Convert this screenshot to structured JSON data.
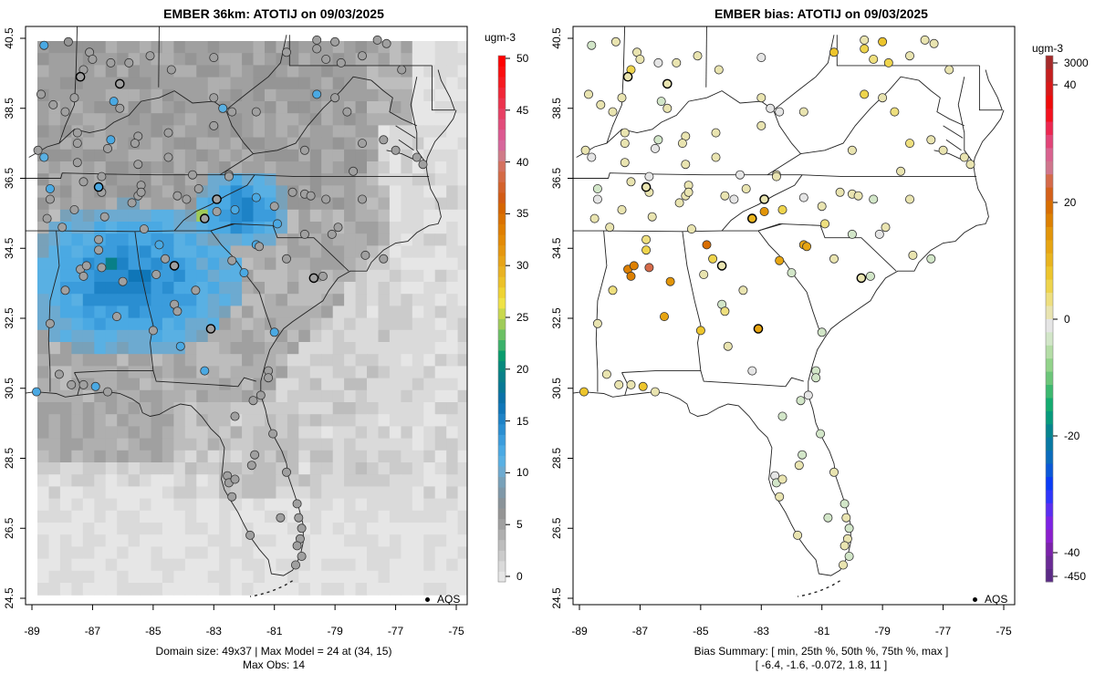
{
  "left_panel": {
    "title": "EMBER 36km: ATOTIJ on 09/03/2025",
    "colorbar": {
      "unit": "ugm-3",
      "ticks": [
        "0",
        "5",
        "10",
        "15",
        "20",
        "25",
        "30",
        "35",
        "40",
        "45",
        "50"
      ],
      "colors": [
        "#e6e6e6",
        "#dadada",
        "#cbcbcb",
        "#bdbdbd",
        "#afafaf",
        "#a0a0a0",
        "#959595",
        "#8a9399",
        "#7f98a8",
        "#78a1b9",
        "#6daad0",
        "#59b0e3",
        "#4aa9e3",
        "#3b9cdc",
        "#2a8ed1",
        "#1d82c6",
        "#0f76b8",
        "#0a71a8",
        "#077895",
        "#087f88",
        "#06897c",
        "#089b6c",
        "#3bb16a",
        "#6bc064",
        "#9fcb58",
        "#c9d84d",
        "#efe246",
        "#efd332",
        "#ecc128",
        "#e9b222",
        "#e7a417",
        "#e5960e",
        "#e38a05",
        "#df7e00",
        "#da7100",
        "#d56500",
        "#d25b14",
        "#d3622b",
        "#d46a45",
        "#d4715f",
        "#d07b88",
        "#d6669b",
        "#dc5890",
        "#e14c7a",
        "#e73f63",
        "#ec334d",
        "#f12637",
        "#f61a20",
        "#fb0d0e",
        "#ff0000"
      ]
    },
    "legend_label": "AQS",
    "footer_line1": "Domain size: 49x37 | Max Model = 24 at (34, 15)",
    "footer_line2": "Max Obs: 14"
  },
  "right_panel": {
    "title": "EMBER bias: ATOTIJ on 09/03/2025",
    "colorbar": {
      "unit": "ugm-3",
      "ticks": [
        "-450",
        "-40",
        "-20",
        "0",
        "20",
        "40",
        "3000"
      ],
      "colors": [
        "#5b2a86",
        "#6a2a95",
        "#7b22aa",
        "#8b1ecd",
        "#7d22e4",
        "#5a2ef0",
        "#2f36fb",
        "#0a3cf6",
        "#0a58d8",
        "#0a6cbc",
        "#0879a3",
        "#06848e",
        "#079a7c",
        "#14ab70",
        "#3cb86f",
        "#6cc679",
        "#92d38a",
        "#b4dda6",
        "#d2e6c8",
        "#e5e5e5",
        "#e9e4b0",
        "#eedf7e",
        "#eed44c",
        "#edc52c",
        "#e9b41e",
        "#e7a512",
        "#e29509",
        "#dd8002",
        "#d86e02",
        "#d4601a",
        "#d56a49",
        "#d0758c",
        "#d9628f",
        "#e24478",
        "#ec2650",
        "#f3111f",
        "#ee0b0b",
        "#d81818",
        "#c41f1f",
        "#a52a2a"
      ]
    },
    "legend_label": "AQS",
    "footer_line1": "Bias Summary: [ min, 25th %, 50th %, 75th %, max ]",
    "footer_line2": "[ -6.4,   -1.6,   -0.072,   1.8,   11 ]"
  },
  "axes": {
    "x_ticks": [
      "-89",
      "-87",
      "-85",
      "-83",
      "-81",
      "-79",
      "-77",
      "-75"
    ],
    "y_ticks": [
      "24.5",
      "26.5",
      "28.5",
      "30.5",
      "32.5",
      "34.5",
      "36.5",
      "38.5",
      "40.5"
    ],
    "lon_range": [
      -89,
      -75
    ],
    "lat_range": [
      24.5,
      40.5
    ]
  },
  "map_colors": {
    "state_line": "#222222",
    "obs_outline": "#333333",
    "nodata": "#ffffff"
  }
}
